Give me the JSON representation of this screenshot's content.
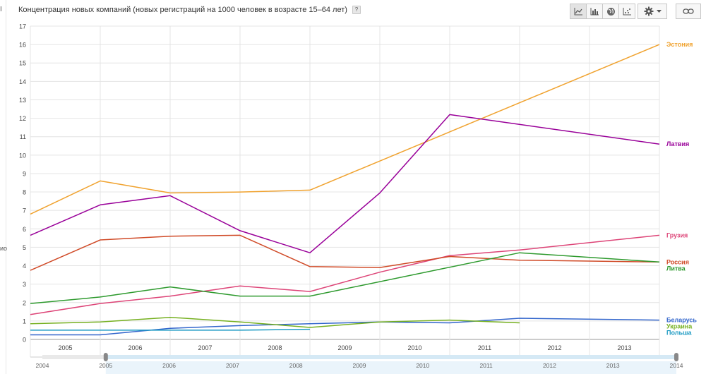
{
  "header": {
    "title": "Концентрация новых компаний (новых регистраций на 1000 человек в возрасте 15–64 лет)",
    "help_label": "?"
  },
  "toolbar": {
    "buttons": [
      "line-chart-icon",
      "bar-chart-icon",
      "globe-icon",
      "scatter-chart-icon"
    ],
    "active_index": 0,
    "settings_icon": "gear-icon",
    "link_icon": "link-icon"
  },
  "left_edge": {
    "top_mark": "I",
    "side_text": "ио"
  },
  "colors": {
    "estonia": "#f0a22e",
    "latvia": "#990099",
    "georgia": "#dd4477",
    "russia": "#d04a27",
    "lithuania": "#2e9a2e",
    "belarus": "#3366cc",
    "ukraine": "#76b021",
    "poland": "#1e9bc3",
    "grid": "#e4e4e4",
    "axis_text": "#444444"
  },
  "chart_data": {
    "type": "line",
    "title": "Концентрация новых компаний (новых регистраций на 1000 человек в возрасте 15–64 лет)",
    "xlabel": "",
    "ylabel": "",
    "x": [
      2004,
      2005,
      2006,
      2007,
      2008,
      2009,
      2010,
      2011,
      2012,
      2013
    ],
    "xlim": [
      2004,
      2013
    ],
    "ylim": [
      0,
      17
    ],
    "y_ticks": [
      "0",
      "1",
      "2",
      "3",
      "4",
      "5",
      "6",
      "7",
      "8",
      "9",
      "10",
      "11",
      "12",
      "13",
      "14",
      "15",
      "16",
      "17"
    ],
    "x_tick_labels": [
      "2005",
      "2006",
      "2007",
      "2008",
      "2009",
      "2010",
      "2011",
      "2012",
      "2013"
    ],
    "grid": true,
    "legend": "right, labels at line ends",
    "series": [
      {
        "name": "Эстония",
        "color_key": "estonia",
        "values": [
          6.8,
          8.6,
          7.95,
          8.0,
          8.1,
          null,
          null,
          null,
          null,
          16.0
        ]
      },
      {
        "name": "Латвия",
        "color_key": "latvia",
        "values": [
          5.65,
          7.3,
          7.8,
          5.9,
          4.7,
          7.95,
          12.2,
          null,
          null,
          10.6
        ]
      },
      {
        "name": "Грузия",
        "color_key": "georgia",
        "values": [
          1.35,
          1.95,
          2.35,
          2.9,
          2.6,
          3.65,
          4.55,
          4.85,
          null,
          5.65
        ]
      },
      {
        "name": "Россия",
        "color_key": "russia",
        "values": [
          3.75,
          5.4,
          5.6,
          5.65,
          3.95,
          3.9,
          4.5,
          4.3,
          null,
          4.2
        ]
      },
      {
        "name": "Литва",
        "color_key": "lithuania",
        "values": [
          1.95,
          2.3,
          2.85,
          2.35,
          2.35,
          null,
          null,
          4.7,
          null,
          4.2
        ]
      },
      {
        "name": "Беларусь",
        "color_key": "belarus",
        "values": [
          0.25,
          0.25,
          0.6,
          0.75,
          0.85,
          0.95,
          0.9,
          1.15,
          null,
          1.05
        ]
      },
      {
        "name": "Украина",
        "color_key": "ukraine",
        "values": [
          0.85,
          0.95,
          1.2,
          0.95,
          0.65,
          0.95,
          1.05,
          0.9,
          null,
          null
        ]
      },
      {
        "name": "Польша",
        "color_key": "poland",
        "values": [
          0.5,
          0.5,
          0.5,
          0.5,
          0.55,
          null,
          null,
          null,
          null,
          null
        ]
      }
    ]
  },
  "timeline": {
    "labels": [
      "2004",
      "2005",
      "2006",
      "2007",
      "2008",
      "2009",
      "2010",
      "2011",
      "2012",
      "2013",
      "2014"
    ],
    "range": [
      2005,
      2014
    ]
  }
}
